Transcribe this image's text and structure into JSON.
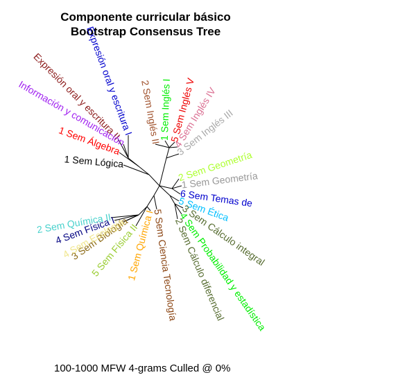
{
  "title": {
    "line1": "Componente curricular básico",
    "line2": "Bootstrap Consensus Tree"
  },
  "footer": "100-1000 MFW 4-grams Culled @ 0%",
  "leaves": [
    {
      "label": "Expresión oral y escritura II",
      "color": "#8b1a1a"
    },
    {
      "label": "Expresión oral y escritura I",
      "color": "#0000cd"
    },
    {
      "label": "Información y comunicación",
      "color": "#a020f0"
    },
    {
      "label": "1 Sem Álgebra",
      "color": "#ff0000"
    },
    {
      "label": "1 Sem Lógica",
      "color": "#000000"
    },
    {
      "label": "2 Sem Inglés II",
      "color": "#a0522d"
    },
    {
      "label": "1 Sem Inglés I",
      "color": "#00ee00"
    },
    {
      "label": "5 Sem Inglés V",
      "color": "#ee0000"
    },
    {
      "label": "4 Sem Inglés IV",
      "color": "#db7093"
    },
    {
      "label": "3 Sem Inglés III",
      "color": "#aaaaaa"
    },
    {
      "label": "2 Sem Geometría",
      "color": "#adff2f"
    },
    {
      "label": "1 Sem Geometría",
      "color": "#999999"
    },
    {
      "label": "6 Sem Temas de",
      "color": "#0000cd"
    },
    {
      "label": "5 Sem Ética",
      "color": "#00bfff"
    },
    {
      "label": "3 Sem Cálculo integral",
      "color": "#556b2f"
    },
    {
      "label": "4 Sem Probabilidad y estadística",
      "color": "#00ee00"
    },
    {
      "label": "2 Sem Cálculo diferencial",
      "color": "#556b2f"
    },
    {
      "label": "5 Sem Ciencia Tecnología",
      "color": "#8b4513"
    },
    {
      "label": "1 Sem Química I",
      "color": "#ffa500"
    },
    {
      "label": "5 Sem Física II",
      "color": "#9acd32"
    },
    {
      "label": "3 Sem Biología",
      "color": "#8b6914"
    },
    {
      "label": "4 Sem Ecología",
      "color": "#f0e68c"
    },
    {
      "label": "4 Sem Física I",
      "color": "#000080"
    },
    {
      "label": "2 Sem Química II",
      "color": "#48d1cc"
    }
  ]
}
